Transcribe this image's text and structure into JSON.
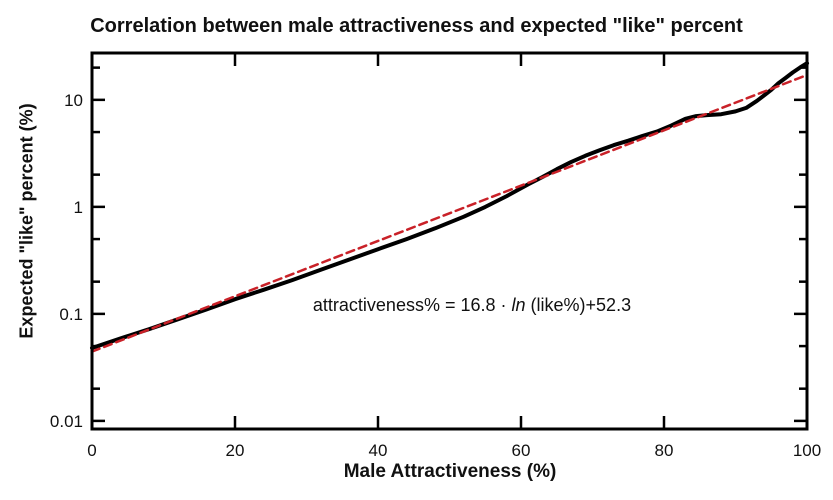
{
  "chart_data": {
    "type": "line",
    "title": "Correlation between male attractiveness and expected \"like\" percent",
    "xlabel": "Male Attractiveness (%)",
    "ylabel": "Expected \"like\" percent (%)",
    "x_scale": "linear",
    "y_scale": "log",
    "xlim": [
      0,
      100
    ],
    "ylim": [
      0.0084,
      27.4
    ],
    "grid": false,
    "legend": "none",
    "x_ticks": [
      0,
      20,
      40,
      60,
      80,
      100
    ],
    "x_tick_labels": [
      "0",
      "20",
      "40",
      "60",
      "80",
      "100"
    ],
    "y_ticks_major": [
      0.01,
      0.1,
      1,
      10
    ],
    "y_tick_labels": [
      "0.01",
      "0.1",
      "1",
      "10"
    ],
    "y_ticks_minor": [
      0.02,
      0.05,
      0.2,
      0.5,
      2,
      5,
      20
    ],
    "series": [
      {
        "name": "observed-curve",
        "style": "solid",
        "color": "#000000",
        "width": 4,
        "points": [
          [
            0,
            0.048
          ],
          [
            4,
            0.059
          ],
          [
            8,
            0.072
          ],
          [
            12,
            0.089
          ],
          [
            16,
            0.11
          ],
          [
            20,
            0.137
          ],
          [
            24,
            0.168
          ],
          [
            28,
            0.207
          ],
          [
            32,
            0.258
          ],
          [
            36,
            0.322
          ],
          [
            40,
            0.402
          ],
          [
            44,
            0.5
          ],
          [
            48,
            0.63
          ],
          [
            52,
            0.81
          ],
          [
            55,
            1.0
          ],
          [
            58,
            1.26
          ],
          [
            61,
            1.62
          ],
          [
            63,
            1.9
          ],
          [
            65,
            2.25
          ],
          [
            67,
            2.62
          ],
          [
            69,
            3.0
          ],
          [
            71,
            3.38
          ],
          [
            73,
            3.78
          ],
          [
            75,
            4.15
          ],
          [
            77,
            4.6
          ],
          [
            79,
            5.05
          ],
          [
            81,
            5.75
          ],
          [
            83,
            6.65
          ],
          [
            84.5,
            7.05
          ],
          [
            86,
            7.2
          ],
          [
            88,
            7.35
          ],
          [
            90,
            7.8
          ],
          [
            91.5,
            8.4
          ],
          [
            93,
            9.8
          ],
          [
            94,
            11.0
          ],
          [
            95,
            12.4
          ],
          [
            96,
            14.3
          ],
          [
            97,
            16.0
          ],
          [
            98,
            18.0
          ],
          [
            99,
            20.0
          ],
          [
            100,
            22.0
          ]
        ]
      },
      {
        "name": "log-fit-line",
        "style": "dashed",
        "color": "#c92128",
        "width": 2.5,
        "points": [
          [
            0,
            0.0444
          ],
          [
            100,
            17.07
          ]
        ]
      }
    ],
    "annotation_equation": "attractiveness% = 16.8 · ln (like%)+52.3",
    "fit_coefficients": {
      "slope": 16.8,
      "intercept": 52.3
    }
  },
  "annotation": {
    "pre": "attractiveness% = 16.8 · ",
    "italic": "ln",
    "post": " (like%)+52.3"
  },
  "colors": {
    "background": "#ffffff",
    "axis": "#000000",
    "text": "#111111",
    "curve": "#000000",
    "fit_line": "#c92128"
  }
}
